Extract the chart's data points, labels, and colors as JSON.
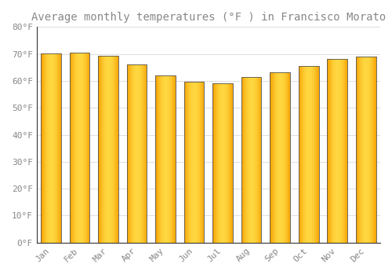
{
  "title": "Average monthly temperatures (°F ) in Francisco Morato",
  "months": [
    "Jan",
    "Feb",
    "Mar",
    "Apr",
    "May",
    "Jun",
    "Jul",
    "Aug",
    "Sep",
    "Oct",
    "Nov",
    "Dec"
  ],
  "values": [
    70.3,
    70.5,
    69.3,
    66.2,
    62.0,
    59.7,
    59.2,
    61.3,
    63.3,
    65.5,
    68.0,
    69.1
  ],
  "bar_color_center": "#FFD740",
  "bar_color_edge": "#F5A000",
  "bar_edge_color": "#555555",
  "background_color": "#FFFFFF",
  "grid_color": "#DDDDDD",
  "text_color": "#888888",
  "ylim": [
    0,
    80
  ],
  "yticks": [
    0,
    10,
    20,
    30,
    40,
    50,
    60,
    70,
    80
  ],
  "title_fontsize": 10,
  "tick_fontsize": 8,
  "bar_width": 0.7
}
